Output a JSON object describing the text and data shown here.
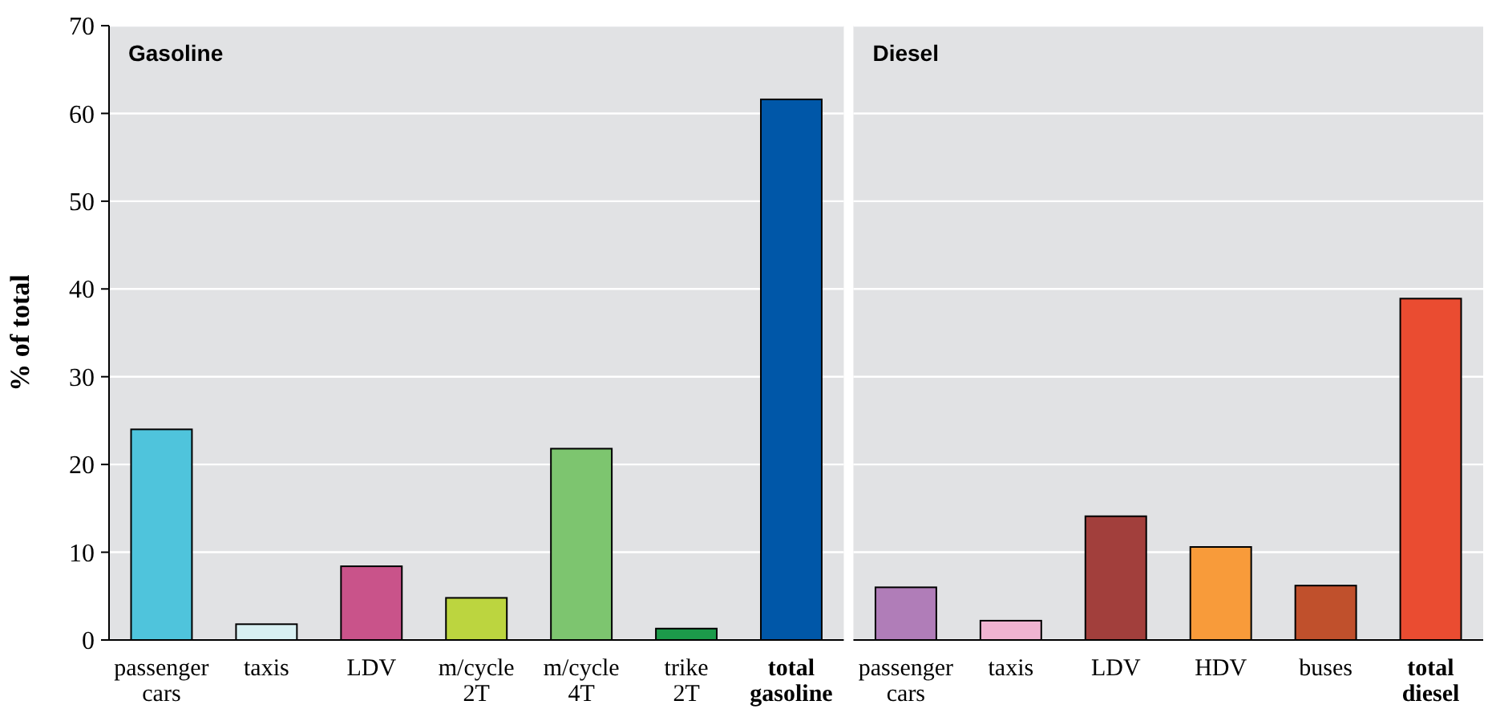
{
  "chart_data": [
    {
      "type": "bar",
      "title": "Gasoline",
      "ylabel": "% of total",
      "categories": [
        "passenger cars",
        "taxis",
        "LDV",
        "m/cycle 2T",
        "m/cycle 4T",
        "trike 2T",
        "total gasoline"
      ],
      "values": [
        24,
        1.8,
        8.4,
        4.8,
        21.8,
        1.3,
        61.6
      ],
      "colors": [
        "#4fc4dc",
        "#d8f0f2",
        "#c9538a",
        "#bcd53f",
        "#7dc56f",
        "#1c9a4a",
        "#0057a8"
      ],
      "ylim": [
        0,
        70
      ],
      "yticks": [
        0,
        10,
        20,
        30,
        40,
        50,
        60,
        70
      ],
      "grid": "y"
    },
    {
      "type": "bar",
      "title": "Diesel",
      "categories": [
        "passenger cars",
        "taxis",
        "LDV",
        "HDV",
        "buses",
        "total diesel"
      ],
      "values": [
        6,
        2.2,
        14.1,
        10.6,
        6.2,
        38.9
      ],
      "colors": [
        "#b07db8",
        "#f0b3d1",
        "#a23f3c",
        "#f89b3a",
        "#c0502c",
        "#ea4c31"
      ],
      "ylim": [
        0,
        70
      ],
      "yticks": [
        0,
        10,
        20,
        30,
        40,
        50,
        60,
        70
      ],
      "grid": "y",
      "tick_labels": "x"
    }
  ]
}
